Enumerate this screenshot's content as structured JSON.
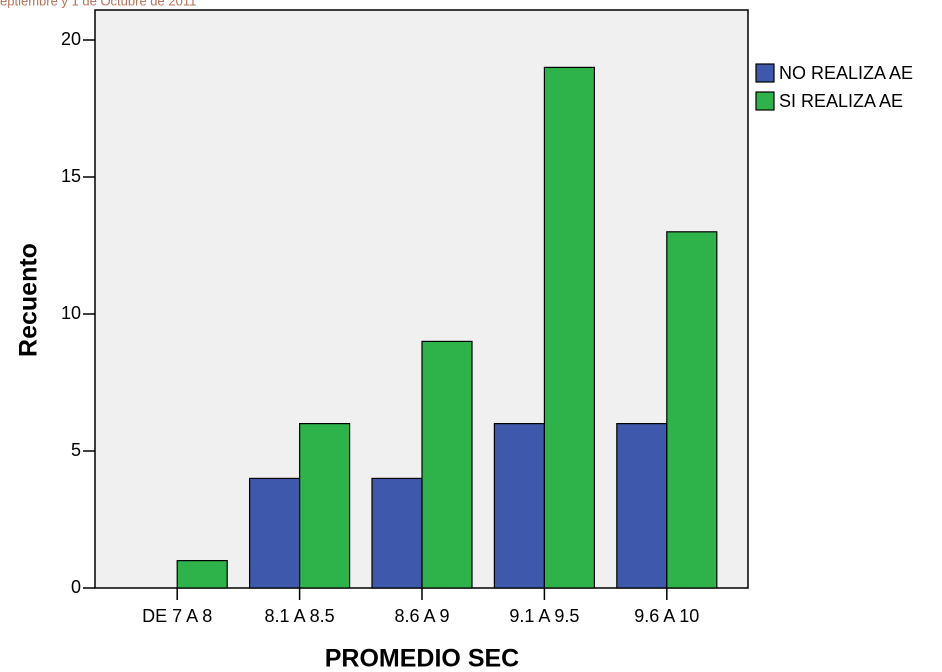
{
  "chart_data": {
    "type": "bar",
    "subtitle": "eptiembre y 1 de Octubre de 2011",
    "x_label": "PROMEDIO SEC",
    "y_label": "Recuento",
    "categories": [
      "DE 7 A 8",
      "8.1 A 8.5",
      "8.6 A 9",
      "9.1 A 9.5",
      "9.6 A 10"
    ],
    "series": [
      {
        "name": "NO REALIZA AE",
        "color": "#3e58ac",
        "values": [
          0,
          4,
          4,
          6,
          6
        ]
      },
      {
        "name": "SI REALIZA AE",
        "color": "#2db34a",
        "values": [
          1,
          6,
          9,
          19,
          13
        ]
      }
    ],
    "ylim": [
      0,
      20
    ],
    "yticks": [
      0,
      5,
      10,
      15,
      20
    ],
    "legend": "right"
  }
}
